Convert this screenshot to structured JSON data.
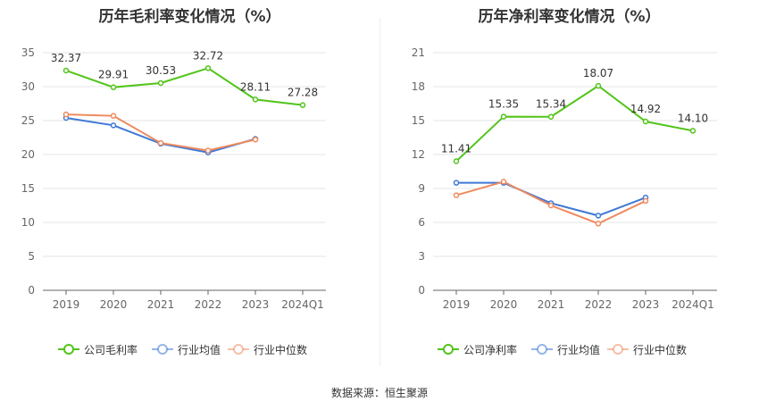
{
  "chart_data": [
    {
      "type": "line",
      "title": "历年毛利率变化情况（%）",
      "categories": [
        "2019",
        "2020",
        "2021",
        "2022",
        "2023",
        "2024Q1"
      ],
      "ylim": [
        0,
        35
      ],
      "yticks": [
        0,
        5,
        10,
        15,
        20,
        25,
        30,
        35
      ],
      "grid": true,
      "legend_position": "bottom",
      "series": [
        {
          "name": "公司毛利率",
          "color": "#52c41a",
          "values": [
            32.37,
            29.91,
            30.53,
            32.72,
            28.11,
            27.28
          ],
          "labeled": true
        },
        {
          "name": "行业均值",
          "color": "#3f78d6",
          "values": [
            25.4,
            24.3,
            21.6,
            20.3,
            22.3,
            null
          ],
          "labeled": false
        },
        {
          "name": "行业中位数",
          "color": "#ee8a5e",
          "values": [
            25.9,
            25.7,
            21.7,
            20.6,
            22.2,
            null
          ],
          "labeled": false
        }
      ],
      "data_labels": [
        "32.37",
        "29.91",
        "30.53",
        "32.72",
        "28.11",
        "27.28"
      ]
    },
    {
      "type": "line",
      "title": "历年净利率变化情况（%）",
      "categories": [
        "2019",
        "2020",
        "2021",
        "2022",
        "2023",
        "2024Q1"
      ],
      "ylim": [
        0,
        21
      ],
      "yticks": [
        0,
        3,
        6,
        9,
        12,
        15,
        18,
        21
      ],
      "grid": true,
      "legend_position": "bottom",
      "series": [
        {
          "name": "公司净利率",
          "color": "#52c41a",
          "values": [
            11.41,
            15.35,
            15.34,
            18.07,
            14.92,
            14.1
          ],
          "labeled": true
        },
        {
          "name": "行业均值",
          "color": "#3f78d6",
          "values": [
            9.5,
            9.5,
            7.7,
            6.6,
            8.2,
            null
          ],
          "labeled": false
        },
        {
          "name": "行业中位数",
          "color": "#ee8a5e",
          "values": [
            8.4,
            9.6,
            7.5,
            5.9,
            7.9,
            null
          ],
          "labeled": false
        }
      ],
      "data_labels": [
        "11.41",
        "15.35",
        "15.34",
        "18.07",
        "14.92",
        "14.10"
      ]
    }
  ],
  "footer": "数据来源：恒生聚源"
}
